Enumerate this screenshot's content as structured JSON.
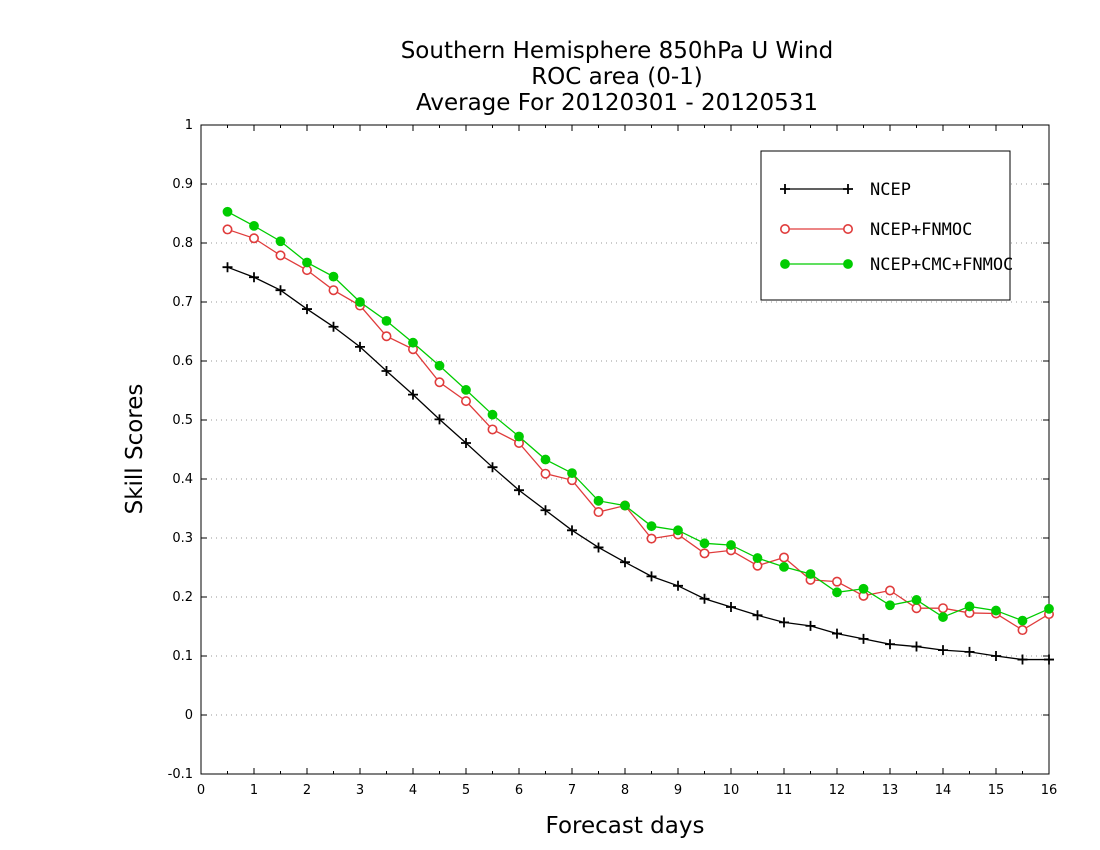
{
  "chart_data": {
    "type": "line",
    "title": [
      "Southern Hemisphere 850hPa U Wind",
      "ROC area (0-1)",
      "Average For 20120301 - 20120531"
    ],
    "xlabel": "Forecast days",
    "ylabel": "Skill Scores",
    "xlim": [
      0,
      16
    ],
    "ylim": [
      -0.1,
      1
    ],
    "x_ticks": [
      "0",
      "1",
      "2",
      "3",
      "4",
      "5",
      "6",
      "7",
      "8",
      "9",
      "10",
      "11",
      "12",
      "13",
      "14",
      "15",
      "16"
    ],
    "y_ticks": [
      "-0.1",
      "0",
      "0.1",
      "0.2",
      "0.3",
      "0.4",
      "0.5",
      "0.6",
      "0.7",
      "0.8",
      "0.9",
      "1"
    ],
    "grid": true,
    "legend_position": "top-right",
    "x": [
      0.5,
      1,
      1.5,
      2,
      2.5,
      3,
      3.5,
      4,
      4.5,
      5,
      5.5,
      6,
      6.5,
      7,
      7.5,
      8,
      8.5,
      9,
      9.5,
      10,
      10.5,
      11,
      11.5,
      12,
      12.5,
      13,
      13.5,
      14,
      14.5,
      15,
      15.5,
      16
    ],
    "series": [
      {
        "name": "NCEP",
        "color": "#000000",
        "marker": "plus",
        "values": [
          0.759,
          0.742,
          0.72,
          0.688,
          0.658,
          0.624,
          0.583,
          0.543,
          0.501,
          0.461,
          0.42,
          0.381,
          0.347,
          0.313,
          0.284,
          0.259,
          0.235,
          0.219,
          0.197,
          0.183,
          0.169,
          0.157,
          0.151,
          0.138,
          0.129,
          0.12,
          0.116,
          0.11,
          0.107,
          0.1,
          0.094,
          0.094
        ]
      },
      {
        "name": "NCEP+FNMOC",
        "color": "#e03c3c",
        "marker": "open-circle",
        "values": [
          0.823,
          0.808,
          0.779,
          0.754,
          0.72,
          0.694,
          0.642,
          0.62,
          0.564,
          0.532,
          0.484,
          0.461,
          0.409,
          0.398,
          0.344,
          0.355,
          0.299,
          0.306,
          0.274,
          0.279,
          0.253,
          0.267,
          0.229,
          0.226,
          0.202,
          0.211,
          0.181,
          0.181,
          0.173,
          0.172,
          0.144,
          0.171
        ]
      },
      {
        "name": "NCEP+CMC+FNMOC",
        "color": "#00cc00",
        "marker": "filled-circle",
        "values": [
          0.853,
          0.829,
          0.803,
          0.767,
          0.743,
          0.7,
          0.668,
          0.631,
          0.592,
          0.551,
          0.509,
          0.472,
          0.433,
          0.41,
          0.363,
          0.355,
          0.32,
          0.313,
          0.291,
          0.288,
          0.266,
          0.251,
          0.239,
          0.208,
          0.214,
          0.186,
          0.195,
          0.166,
          0.184,
          0.177,
          0.16,
          0.18
        ]
      }
    ]
  }
}
